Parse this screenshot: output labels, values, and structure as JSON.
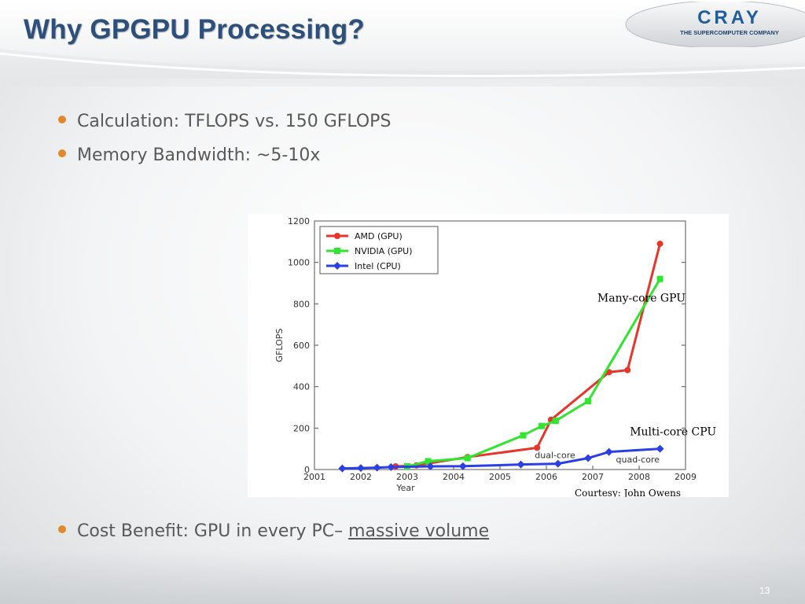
{
  "slide": {
    "title": "Why GPGPU Processing?",
    "page_number": "13"
  },
  "logo": {
    "name": "CRAY",
    "tagline": "THE SUPERCOMPUTER COMPANY"
  },
  "bullets": [
    {
      "text": "Calculation: TFLOPS vs. 150 GFLOPS"
    },
    {
      "text": "Memory Bandwidth: ~5-10x"
    },
    {
      "text": "Cost Benefit: GPU in every PC– ",
      "link": "massive volume"
    }
  ],
  "colors": {
    "title": "#2d4f7c",
    "bullet_dot": "#e0892a",
    "amd": "#e8352a",
    "nvidia": "#2ee62e",
    "intel": "#2b3fe6"
  },
  "chart_data": {
    "type": "line",
    "xlabel": "Year",
    "ylabel": "GFLOPS",
    "xlim": [
      2001,
      2009
    ],
    "ylim": [
      0,
      1200
    ],
    "x_ticks": [
      "2001",
      "2002",
      "2003",
      "2004",
      "2005",
      "2006",
      "2007",
      "2008",
      "2009"
    ],
    "y_ticks": [
      "0",
      "200",
      "400",
      "600",
      "800",
      "1000",
      "1200"
    ],
    "legend_position": "top-left",
    "series": [
      {
        "name": "AMD (GPU)",
        "color": "#e8352a",
        "marker": "circle",
        "x": [
          2002.75,
          2003.2,
          2004.3,
          2005.8,
          2006.1,
          2007.35,
          2007.75,
          2008.45
        ],
        "y": [
          15,
          20,
          60,
          105,
          240,
          470,
          480,
          1090
        ]
      },
      {
        "name": "NVIDIA (GPU)",
        "color": "#2ee62e",
        "marker": "square",
        "x": [
          2003.0,
          2003.45,
          2004.3,
          2005.5,
          2005.9,
          2006.2,
          2006.9,
          2008.45
        ],
        "y": [
          15,
          40,
          55,
          165,
          210,
          235,
          330,
          920
        ]
      },
      {
        "name": "Intel (CPU)",
        "color": "#2b3fe6",
        "marker": "diamond",
        "x": [
          2001.6,
          2002.0,
          2002.35,
          2002.65,
          2003.5,
          2004.2,
          2005.45,
          2006.25,
          2006.9,
          2007.35,
          2008.45
        ],
        "y": [
          5,
          7,
          9,
          12,
          15,
          16,
          24,
          28,
          55,
          85,
          100
        ]
      }
    ],
    "annotations": [
      {
        "text": "Many-core GPU",
        "x": 2007.1,
        "y": 810
      },
      {
        "text": "Multi-core CPU",
        "x": 2007.8,
        "y": 165
      },
      {
        "text": "dual-core",
        "x": 2005.75,
        "y": 55
      },
      {
        "text": "quad-core",
        "x": 2007.5,
        "y": 35
      }
    ],
    "credit": "Courtesy: John Owens"
  }
}
